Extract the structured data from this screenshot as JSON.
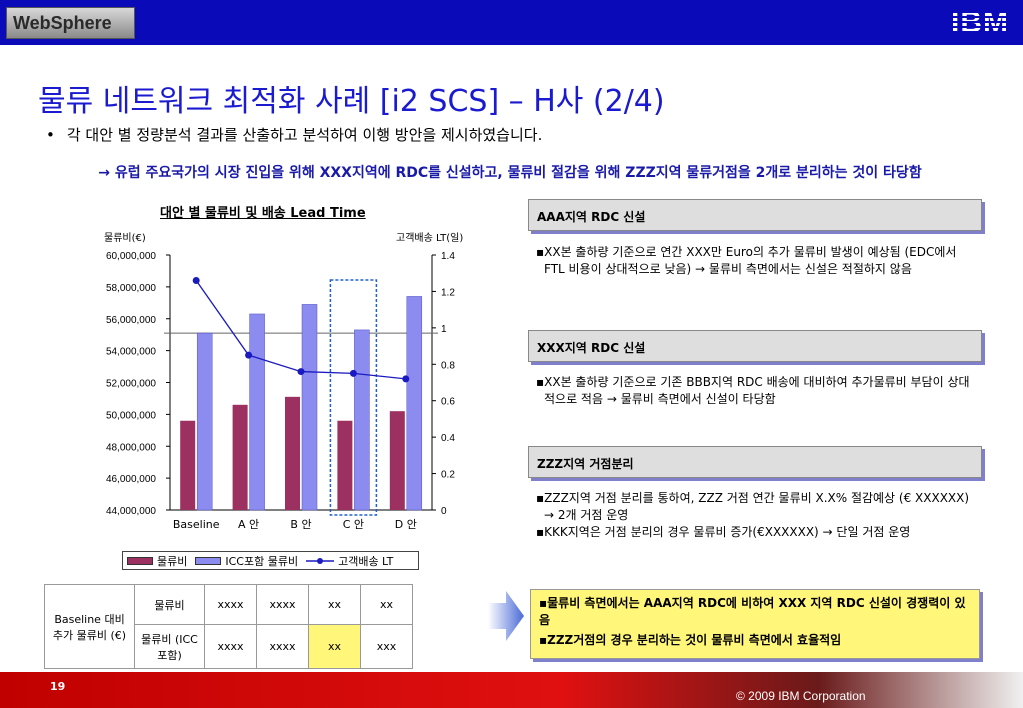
{
  "header": {
    "product_logo": "WebSphere",
    "brand_logo": "IBM"
  },
  "slide": {
    "title": "물류 네트워크 최적화 사례 [i2 SCS] – H사 (2/4)",
    "bullet": "각 대안 별 정량분석 결과를 산출하고 분석하여 이행 방안을 제시하였습니다.",
    "arrow_note": "→ 유럽 주요국가의 시장 진입을 위해 XXX지역에 RDC를 신설하고, 물류비 절감을 위해 ZZZ지역  물류거점을 2개로 분리하는 것이 타당함"
  },
  "chart_data": {
    "type": "bar",
    "title": "대안 별 물류비 및 배송 Lead Time",
    "ylabel": "물류비(€)",
    "y2label": "고객배송 LT(일)",
    "categories": [
      "Baseline",
      "A 안",
      "B 안",
      "C 안",
      "D 안"
    ],
    "ylim": [
      44000000,
      60000000
    ],
    "y_ticks": [
      "60,000,000",
      "58,000,000",
      "56,000,000",
      "54,000,000",
      "52,000,000",
      "50,000,000",
      "48,000,000",
      "46,000,000",
      "44,000,000"
    ],
    "y2lim": [
      0,
      1.4
    ],
    "y2_ticks": [
      "1.4",
      "1.2",
      "1",
      "0.8",
      "0.6",
      "0.4",
      "0.2",
      "0"
    ],
    "series": [
      {
        "name": "물류비",
        "kind": "bar",
        "axis": "left",
        "color": "#9c3060",
        "values": [
          49600000,
          50600000,
          51100000,
          49600000,
          50200000
        ]
      },
      {
        "name": "ICC포함 물류비",
        "kind": "bar",
        "axis": "left",
        "color": "#8c8cf0",
        "values": [
          55100000,
          56300000,
          56900000,
          55300000,
          57400000
        ]
      },
      {
        "name": "고객배송 LT",
        "kind": "line",
        "axis": "right",
        "color": "#1a1ac0",
        "values": [
          1.26,
          0.85,
          0.76,
          0.75,
          0.72
        ]
      }
    ],
    "baseline_reference": 55100000,
    "highlight_category": "C 안",
    "legend_position": "bottom"
  },
  "cost_table": {
    "row_header": "Baseline 대비 추가 물류비 (€)",
    "rows": [
      {
        "label": "물류비",
        "cells": [
          "xxxx",
          "xxxx",
          "xx",
          "xx"
        ]
      },
      {
        "label": "물류비 (ICC포함)",
        "cells": [
          "xxxx",
          "xxxx",
          "xx",
          "xxx"
        ]
      }
    ],
    "highlight_color": "#fff67a"
  },
  "options": [
    {
      "heading": "AAA지역 RDC 신설",
      "lines": [
        "▪XX본 출하량 기준으로 연간 XXX만 Euro의 추가 물류비 발생이 예상됨 (EDC에서 FTL 비용이 상대적으로 낮음) → 물류비 측면에서는 신설은 적절하지 않음"
      ]
    },
    {
      "heading": "XXX지역 RDC 신설",
      "lines": [
        "▪XX본 출하량 기준으로 기존 BBB지역 RDC 배송에 대비하여 추가물류비 부담이 상대적으로 적음 → 물류비 측면에서 신설이 타당함"
      ]
    },
    {
      "heading": "ZZZ지역 거점분리",
      "lines": [
        "▪ZZZ지역 거점 분리를 통하여, ZZZ 거점 연간 물류비 X.X% 절감예상 (€ XXXXXX) → 2개 거점 운영",
        "▪KKK지역은 거점 분리의 경우 물류비 증가(€XXXXXX) → 단일 거점 운영"
      ]
    }
  ],
  "conclusion": [
    "▪물류비 측면에서는 AAA지역 RDC에 비하여 XXX 지역 RDC 신설이 경쟁력이 있음",
    "▪ZZZ거점의 경우 분리하는 것이 물류비 측면에서 효율적임"
  ],
  "footer": {
    "page_number": "19",
    "copyright": "© 2009 IBM Corporation"
  }
}
